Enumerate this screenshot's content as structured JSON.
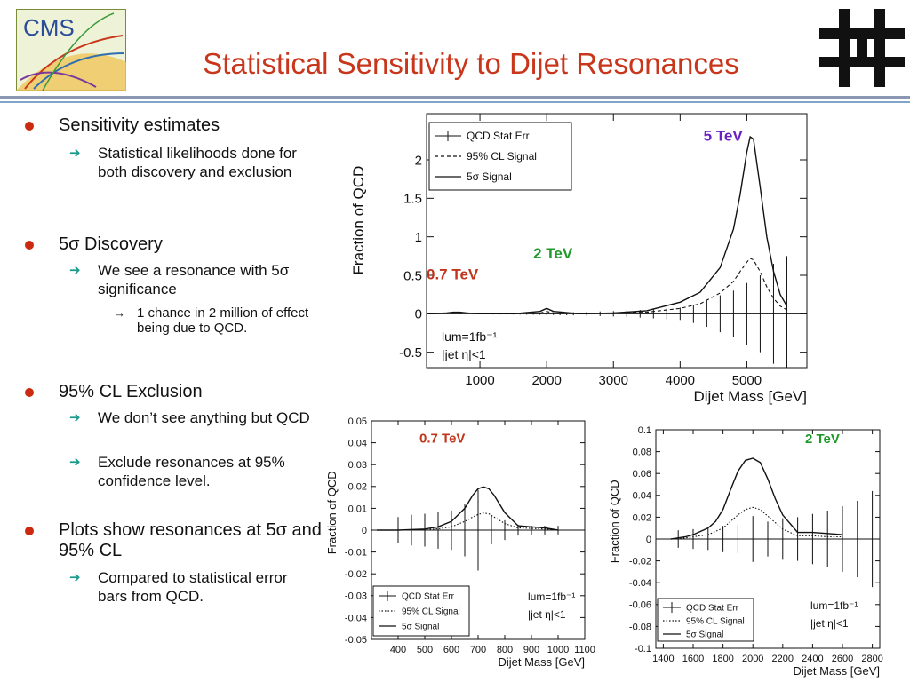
{
  "slide": {
    "title": "Statistical Sensitivity to Dijet Resonances",
    "logo_left_text": "CMS",
    "logo_left_icon": "cms-detector-icon",
    "logo_right_icon": "fermilab-logo-icon",
    "title_color": "#c8361c",
    "bullet_color": "#cc2a10",
    "arrow_color": "#1a9a8c"
  },
  "bullets": [
    {
      "text": "Sensitivity estimates",
      "sub": [
        {
          "text": "Statistical likelihoods done for both discovery and exclusion",
          "sub": []
        }
      ]
    },
    {
      "text": "5σ Discovery",
      "sub": [
        {
          "text": "We see a resonance with 5σ significance",
          "sub": [
            "1 chance in 2 million of effect being due to QCD."
          ]
        }
      ]
    },
    {
      "text": "95% CL Exclusion",
      "sub": [
        {
          "text": "We don’t see anything but QCD",
          "sub": []
        },
        {
          "text": "Exclude resonances at 95% confidence level.",
          "sub": []
        }
      ]
    },
    {
      "text": "Plots show resonances at 5σ and 95% CL",
      "sub": [
        {
          "text": "Compared to statistical error bars from QCD.",
          "sub": []
        }
      ]
    }
  ],
  "chart_data": [
    {
      "type": "line",
      "xlabel": "Dijet Mass [GeV]",
      "ylabel": "Fraction of QCD",
      "xlim": [
        200,
        5900
      ],
      "ylim": [
        -0.7,
        2.6
      ],
      "xticks": [
        1000,
        2000,
        3000,
        4000,
        5000
      ],
      "yticks": [
        -0.5,
        0,
        0.5,
        1,
        1.5,
        2
      ],
      "ytick_labels": [
        "-0.5",
        "0",
        "0.5",
        "1",
        "1.5",
        "2"
      ],
      "legend": {
        "position": "top-left",
        "entries": [
          "QCD Stat Err",
          "95% CL Signal",
          "5σ Signal"
        ]
      },
      "annotations": [
        {
          "text": "5 TeV",
          "color": "#6a1fc0",
          "x": 4350,
          "y": 2.25
        },
        {
          "text": "2 TeV",
          "color": "#1f9a2a",
          "x": 1800,
          "y": 0.72
        },
        {
          "text": "0.7 TeV",
          "color": "#c0361c",
          "x": 200,
          "y": 0.45
        }
      ],
      "info": [
        "lum=1fb⁻¹",
        "|jet η|<1"
      ],
      "series": [
        {
          "style": "solid",
          "x": [
            220,
            500,
            600,
            700,
            800,
            1000,
            1500,
            1900,
            2000,
            2100,
            2500,
            3000,
            3500,
            4000,
            4300,
            4600,
            4800,
            4900,
            5000,
            5050,
            5100,
            5200,
            5300,
            5400,
            5500,
            5600
          ],
          "y": [
            0,
            0.01,
            0.02,
            0.02,
            0.01,
            0,
            0,
            0.03,
            0.07,
            0.03,
            0,
            0.01,
            0.04,
            0.15,
            0.28,
            0.6,
            1.1,
            1.55,
            2.1,
            2.3,
            2.27,
            1.65,
            1.0,
            0.55,
            0.25,
            0.1
          ]
        },
        {
          "style": "dashed",
          "x": [
            220,
            700,
            1000,
            1500,
            1900,
            2000,
            2100,
            2500,
            3000,
            3500,
            4000,
            4300,
            4600,
            4800,
            4900,
            5000,
            5050,
            5100,
            5200,
            5300,
            5400,
            5500,
            5600
          ],
          "y": [
            0,
            0.01,
            0,
            0,
            0.01,
            0.03,
            0.01,
            0,
            0.01,
            0.02,
            0.07,
            0.13,
            0.27,
            0.42,
            0.55,
            0.67,
            0.72,
            0.7,
            0.55,
            0.35,
            0.2,
            0.1,
            0.05
          ]
        }
      ],
      "error_bars": {
        "x": [
          300,
          400,
          500,
          600,
          700,
          800,
          900,
          1000,
          1100,
          1200,
          1300,
          1400,
          1500,
          1600,
          1700,
          1800,
          1900,
          2000,
          2100,
          2200,
          2300,
          2400,
          2600,
          2800,
          3000,
          3200,
          3400,
          3600,
          3800,
          4000,
          4200,
          4400,
          4600,
          4800,
          5000,
          5200,
          5400,
          5600
        ],
        "err": [
          0.005,
          0.005,
          0.005,
          0.006,
          0.006,
          0.007,
          0.007,
          0.008,
          0.008,
          0.009,
          0.009,
          0.01,
          0.01,
          0.011,
          0.012,
          0.013,
          0.014,
          0.015,
          0.016,
          0.018,
          0.02,
          0.02,
          0.025,
          0.03,
          0.035,
          0.04,
          0.05,
          0.06,
          0.07,
          0.08,
          0.12,
          0.17,
          0.24,
          0.3,
          0.4,
          0.5,
          0.65,
          0.75
        ]
      }
    },
    {
      "type": "line",
      "xlabel": "Dijet Mass [GeV]",
      "ylabel": "Fraction of QCD",
      "xlim": [
        300,
        1100
      ],
      "ylim": [
        -0.05,
        0.05
      ],
      "xticks": [
        400,
        500,
        600,
        700,
        800,
        900,
        1000,
        1100
      ],
      "yticks": [
        -0.05,
        -0.04,
        -0.03,
        -0.02,
        -0.01,
        0,
        0.01,
        0.02,
        0.03,
        0.04,
        0.05
      ],
      "ytick_labels": [
        "-0.05",
        "-0.04",
        "-0.03",
        "-0.02",
        "-0.01",
        "0",
        "0.01",
        "0.02",
        "0.03",
        "0.04",
        "0.05"
      ],
      "legend": {
        "position": "bottom-left",
        "entries": [
          "QCD Stat Err",
          "95% CL Signal",
          "5σ Signal"
        ]
      },
      "annotations": [
        {
          "text": "0.7 TeV",
          "color": "#c0361c",
          "x": 480,
          "y": 0.04
        }
      ],
      "info": [
        "lum=1fb⁻¹",
        "|jet η|<1"
      ],
      "series": [
        {
          "style": "solid",
          "x": [
            320,
            400,
            500,
            550,
            600,
            650,
            680,
            700,
            720,
            740,
            760,
            800,
            850,
            900,
            950,
            1000
          ],
          "y": [
            0,
            0,
            0.0005,
            0.0015,
            0.004,
            0.01,
            0.016,
            0.019,
            0.0198,
            0.019,
            0.016,
            0.008,
            0.002,
            0.0015,
            0.001,
            0
          ]
        },
        {
          "style": "dotted",
          "x": [
            320,
            400,
            500,
            550,
            600,
            650,
            680,
            700,
            720,
            740,
            760,
            800,
            850,
            900,
            950,
            1000
          ],
          "y": [
            0,
            0,
            0.0002,
            0.0006,
            0.0015,
            0.004,
            0.006,
            0.0072,
            0.0078,
            0.0075,
            0.006,
            0.003,
            0.001,
            0.0008,
            0.0005,
            0
          ]
        }
      ],
      "error_bars": {
        "x": [
          400,
          450,
          500,
          550,
          600,
          650,
          700,
          750,
          800,
          850,
          900,
          950,
          1000
        ],
        "err": [
          0.006,
          0.007,
          0.0075,
          0.0085,
          0.009,
          0.012,
          0.0185,
          0.0065,
          0.0045,
          0.0025,
          0.002,
          0.002,
          0.002
        ]
      }
    },
    {
      "type": "line",
      "xlabel": "Dijet Mass [GeV]",
      "ylabel": "Fraction of QCD",
      "xlim": [
        1350,
        2850
      ],
      "ylim": [
        -0.1,
        0.1
      ],
      "xticks": [
        1400,
        1600,
        1800,
        2000,
        2200,
        2400,
        2600,
        2800
      ],
      "yticks": [
        -0.1,
        -0.08,
        -0.06,
        -0.04,
        -0.02,
        0,
        0.02,
        0.04,
        0.06,
        0.08,
        0.1
      ],
      "ytick_labels": [
        "-0.1",
        "-0.08",
        "-0.06",
        "-0.04",
        "-0.02",
        "0",
        "0.02",
        "0.04",
        "0.06",
        "0.08",
        "0.1"
      ],
      "legend": {
        "position": "bottom-left",
        "entries": [
          "QCD Stat Err",
          "95% CL Signal",
          "5σ Signal"
        ]
      },
      "annotations": [
        {
          "text": "2 TeV",
          "color": "#1f9a2a",
          "x": 2350,
          "y": 0.088
        }
      ],
      "info": [
        "lum=1fb⁻¹",
        "|jet η|<1"
      ],
      "series": [
        {
          "style": "solid",
          "x": [
            1450,
            1550,
            1600,
            1700,
            1750,
            1800,
            1850,
            1900,
            1950,
            2000,
            2050,
            2100,
            2150,
            2200,
            2300,
            2400,
            2500,
            2600
          ],
          "y": [
            0,
            0.002,
            0.004,
            0.01,
            0.016,
            0.027,
            0.045,
            0.062,
            0.072,
            0.074,
            0.07,
            0.055,
            0.037,
            0.022,
            0.006,
            0.006,
            0.005,
            0.004
          ]
        },
        {
          "style": "dotted",
          "x": [
            1450,
            1550,
            1600,
            1700,
            1750,
            1800,
            1850,
            1900,
            1950,
            2000,
            2050,
            2100,
            2150,
            2200,
            2300,
            2400,
            2500,
            2600
          ],
          "y": [
            0,
            0.001,
            0.002,
            0.004,
            0.007,
            0.01,
            0.016,
            0.022,
            0.027,
            0.029,
            0.027,
            0.021,
            0.015,
            0.009,
            0.003,
            0.003,
            0.002,
            0.002
          ]
        }
      ],
      "error_bars": {
        "x": [
          1500,
          1600,
          1700,
          1800,
          1900,
          2000,
          2100,
          2200,
          2300,
          2400,
          2500,
          2600,
          2700,
          2800
        ],
        "err": [
          0.008,
          0.009,
          0.01,
          0.012,
          0.013,
          0.021,
          0.016,
          0.019,
          0.02,
          0.023,
          0.026,
          0.03,
          0.035,
          0.044
        ]
      }
    }
  ]
}
